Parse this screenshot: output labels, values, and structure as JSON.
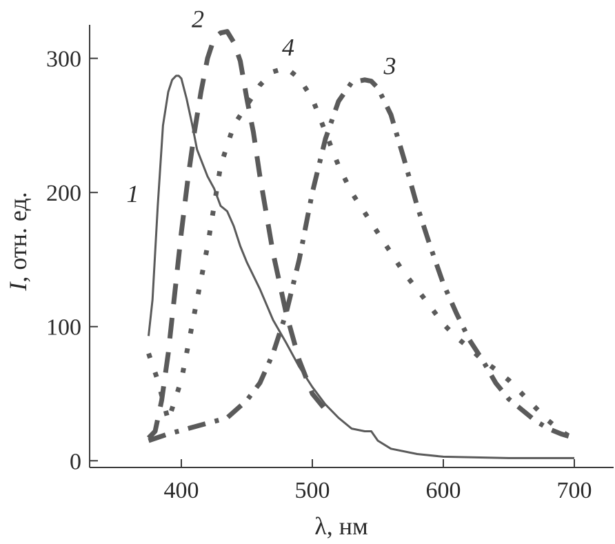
{
  "chart_data": {
    "type": "line",
    "xlabel": "λ, нм",
    "ylabel_italic": "I",
    "ylabel_rest": ", отн. ед.",
    "xlim": [
      330,
      730
    ],
    "ylim": [
      -5,
      325
    ],
    "xticks": [
      400,
      500,
      600,
      700
    ],
    "yticks": [
      0,
      100,
      200,
      300
    ],
    "grid": false,
    "legend": "none (curves labeled directly)",
    "series": [
      {
        "name": "1",
        "style": "solid",
        "x": [
          375,
          378,
          382,
          386,
          390,
          393,
          396,
          398,
          400,
          404,
          408,
          412,
          416,
          420,
          425,
          430,
          435,
          440,
          445,
          450,
          460,
          470,
          480,
          490,
          500,
          510,
          520,
          530,
          540,
          545,
          550,
          560,
          580,
          600,
          650,
          700
        ],
        "y": [
          93,
          120,
          190,
          250,
          275,
          284,
          287,
          287,
          285,
          270,
          252,
          232,
          222,
          212,
          203,
          190,
          186,
          175,
          160,
          148,
          128,
          105,
          88,
          70,
          55,
          42,
          32,
          24,
          22,
          22,
          15,
          9,
          5,
          3,
          2,
          2
        ]
      },
      {
        "name": "2",
        "style": "long-dash",
        "x": [
          375,
          380,
          385,
          390,
          395,
          400,
          405,
          410,
          415,
          420,
          425,
          430,
          435,
          440,
          445,
          450,
          455,
          460,
          470,
          480,
          490,
          500,
          510
        ],
        "y": [
          17,
          22,
          45,
          80,
          125,
          170,
          210,
          245,
          275,
          300,
          315,
          319,
          320,
          312,
          298,
          270,
          245,
          212,
          155,
          110,
          75,
          50,
          38
        ]
      },
      {
        "name": "3",
        "style": "dash-dot",
        "x": [
          375,
          390,
          405,
          420,
          435,
          450,
          460,
          470,
          480,
          490,
          500,
          510,
          520,
          530,
          540,
          545,
          550,
          560,
          570,
          580,
          590,
          600,
          610,
          620,
          630,
          640,
          650,
          660,
          670,
          680,
          690,
          700
        ],
        "y": [
          15,
          20,
          24,
          28,
          32,
          45,
          58,
          80,
          110,
          150,
          200,
          240,
          268,
          282,
          284,
          283,
          278,
          258,
          225,
          190,
          160,
          132,
          110,
          90,
          75,
          58,
          46,
          38,
          30,
          24,
          20,
          17
        ]
      },
      {
        "name": "4",
        "style": "dotted",
        "x": [
          375,
          382,
          390,
          400,
          410,
          420,
          430,
          440,
          450,
          460,
          470,
          480,
          490,
          500,
          510,
          520,
          530,
          540,
          550,
          560,
          570,
          580,
          590,
          600,
          610,
          620,
          630,
          640,
          650,
          660,
          670,
          680,
          690,
          700
        ],
        "y": [
          80,
          60,
          30,
          60,
          110,
          160,
          220,
          250,
          265,
          280,
          290,
          293,
          285,
          270,
          245,
          220,
          200,
          185,
          170,
          155,
          140,
          128,
          115,
          102,
          92,
          84,
          75,
          68,
          60,
          50,
          40,
          30,
          22,
          16
        ]
      }
    ]
  }
}
